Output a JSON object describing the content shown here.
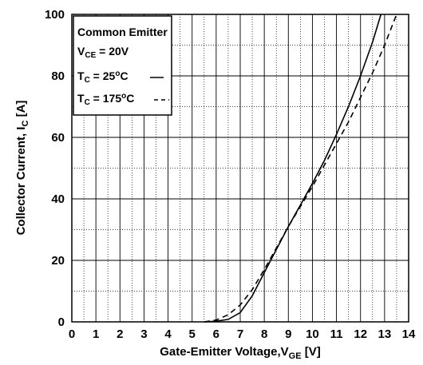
{
  "chart_data": {
    "type": "line",
    "xlabel": "Gate-Emitter Voltage,V",
    "xlabel_sub": "GE",
    "xlabel_unit": " [V]",
    "ylabel": "Collector Current, I",
    "ylabel_sub": "C",
    "ylabel_unit": " [A]",
    "xlim": [
      0,
      14
    ],
    "ylim": [
      0,
      100
    ],
    "x_ticks": [
      "0",
      "1",
      "2",
      "3",
      "4",
      "5",
      "6",
      "7",
      "8",
      "9",
      "10",
      "11",
      "12",
      "13",
      "14"
    ],
    "y_ticks": [
      "0",
      "20",
      "40",
      "60",
      "80",
      "100"
    ],
    "grid": true,
    "legend": {
      "placement": "top-left",
      "title": "Common Emitter",
      "lines": [
        {
          "main": "V",
          "sub": "CE",
          "tail": " = 20V"
        },
        {
          "main": "T",
          "sub": "C",
          "tail": " = 25",
          "sup": "o",
          "tail2": "C"
        },
        {
          "main": "T",
          "sub": "C",
          "tail": " = 175",
          "sup": "o",
          "tail2": "C"
        }
      ]
    },
    "series": [
      {
        "style": "solid",
        "x": [
          5.5,
          6.0,
          6.5,
          7.0,
          7.5,
          8.0,
          8.5,
          9.0,
          9.5,
          10.0,
          10.5,
          11.0,
          11.5,
          12.0,
          12.5,
          12.85
        ],
        "y": [
          0,
          0.2,
          0.8,
          3.0,
          8.5,
          16.0,
          23.5,
          31.0,
          38.0,
          45.0,
          52.5,
          61.0,
          70.0,
          80.0,
          91.0,
          100
        ]
      },
      {
        "style": "dashed",
        "x": [
          5.5,
          6.0,
          6.5,
          7.0,
          7.5,
          8.0,
          8.5,
          9.0,
          9.5,
          10.0,
          10.5,
          11.0,
          11.5,
          12.0,
          12.5,
          13.0,
          13.5
        ],
        "y": [
          0,
          0.6,
          2.3,
          5.5,
          10.5,
          17.0,
          24.0,
          31.0,
          37.5,
          44.0,
          51.0,
          58.0,
          65.0,
          73.0,
          81.0,
          90.0,
          100
        ]
      }
    ]
  }
}
